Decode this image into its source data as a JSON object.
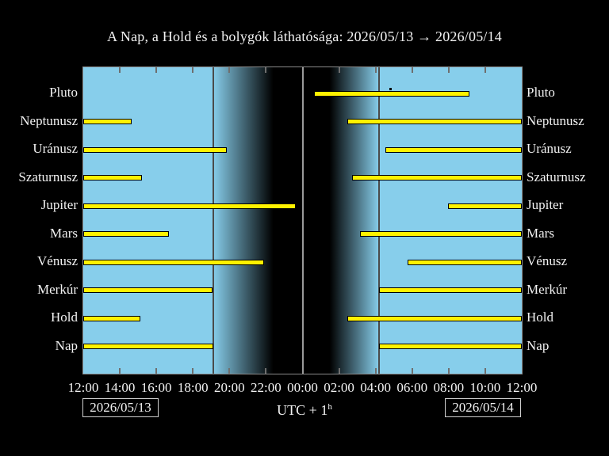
{
  "title": "A Nap, a Hold és a bolygók láthatósága: 2026/05/13 → 2026/05/14",
  "footer": {
    "date_left": "2026/05/13",
    "date_right": "2026/05/14",
    "utc_prefix": "UTC + 1",
    "utc_sup": "h"
  },
  "colors": {
    "background": "#000000",
    "day": "#87CEEB",
    "night": "#000000",
    "bar": "#FFF200",
    "bar_border": "#000000",
    "frame": "#8a8a8a",
    "tick": "#6e6e6e",
    "text": "#f2f2f2"
  },
  "chart_data": {
    "type": "gantt-visibility",
    "title": "A Nap, a Hold és a bolygók láthatósága: 2026/05/13 → 2026/05/14",
    "x_axis": {
      "origin": "12:00 on 2026/05/13",
      "end": "12:00 on 2026/05/14",
      "span_hours": 24,
      "tick_interval_hours": 2,
      "tick_labels": [
        "12:00",
        "14:00",
        "16:00",
        "18:00",
        "20:00",
        "22:00",
        "00:00",
        "02:00",
        "04:00",
        "06:00",
        "08:00",
        "10:00",
        "12:00"
      ]
    },
    "daylight": {
      "sunset": "19:05",
      "sunset_h": 7.1,
      "full_night": "22:25",
      "full_night_h": 10.4,
      "dawn_start": "01:30",
      "dawn_start_h": 13.5,
      "sunrise": "04:10",
      "sunrise_h": 16.19
    },
    "markers": [
      {
        "name": "sunset-line",
        "h": 7.1,
        "color": "#4a4a4a"
      },
      {
        "name": "midnight-line",
        "h": 12.0,
        "color": "#9a9a9a"
      },
      {
        "name": "sunrise-line",
        "h": 16.19,
        "color": "#4a4a4a"
      }
    ],
    "bodies": [
      {
        "label": "Pluto",
        "intervals": [
          {
            "start": "00:40",
            "end": "09:10",
            "s_h": 12.63,
            "e_h": 21.13
          }
        ],
        "transit_dot": "04:50",
        "transit_dot_h": 16.8
      },
      {
        "label": "Neptunusz",
        "intervals": [
          {
            "start": "12:00",
            "end": "14:40",
            "s_h": 0,
            "e_h": 2.65
          },
          {
            "start": "02:25",
            "end": "12:00",
            "s_h": 14.45,
            "e_h": 24
          }
        ]
      },
      {
        "label": "Uránusz",
        "intervals": [
          {
            "start": "12:00",
            "end": "19:50",
            "s_h": 0,
            "e_h": 7.86
          },
          {
            "start": "04:30",
            "end": "12:00",
            "s_h": 16.54,
            "e_h": 24
          }
        ]
      },
      {
        "label": "Szaturnusz",
        "intervals": [
          {
            "start": "12:00",
            "end": "15:10",
            "s_h": 0,
            "e_h": 3.21
          },
          {
            "start": "02:45",
            "end": "12:00",
            "s_h": 14.71,
            "e_h": 24
          }
        ]
      },
      {
        "label": "Jupiter",
        "intervals": [
          {
            "start": "12:00",
            "end": "23:40",
            "s_h": 0,
            "e_h": 11.63
          },
          {
            "start": "08:00",
            "end": "12:00",
            "s_h": 19.96,
            "e_h": 24
          }
        ]
      },
      {
        "label": "Mars",
        "intervals": [
          {
            "start": "12:00",
            "end": "16:40",
            "s_h": 0,
            "e_h": 4.69
          },
          {
            "start": "03:10",
            "end": "12:00",
            "s_h": 15.14,
            "e_h": 24
          }
        ]
      },
      {
        "label": "Vénusz",
        "intervals": [
          {
            "start": "12:00",
            "end": "21:55",
            "s_h": 0,
            "e_h": 9.89
          },
          {
            "start": "05:45",
            "end": "12:00",
            "s_h": 17.75,
            "e_h": 24
          }
        ]
      },
      {
        "label": "Merkúr",
        "intervals": [
          {
            "start": "12:00",
            "end": "19:05",
            "s_h": 0,
            "e_h": 7.07
          },
          {
            "start": "04:10",
            "end": "12:00",
            "s_h": 16.19,
            "e_h": 24
          }
        ]
      },
      {
        "label": "Hold",
        "intervals": [
          {
            "start": "12:00",
            "end": "15:05",
            "s_h": 0,
            "e_h": 3.12
          },
          {
            "start": "02:25",
            "end": "12:00",
            "s_h": 14.45,
            "e_h": 24
          }
        ]
      },
      {
        "label": "Nap",
        "intervals": [
          {
            "start": "12:00",
            "end": "19:05",
            "s_h": 0,
            "e_h": 7.12
          },
          {
            "start": "04:10",
            "end": "12:00",
            "s_h": 16.19,
            "e_h": 24
          }
        ]
      }
    ]
  }
}
